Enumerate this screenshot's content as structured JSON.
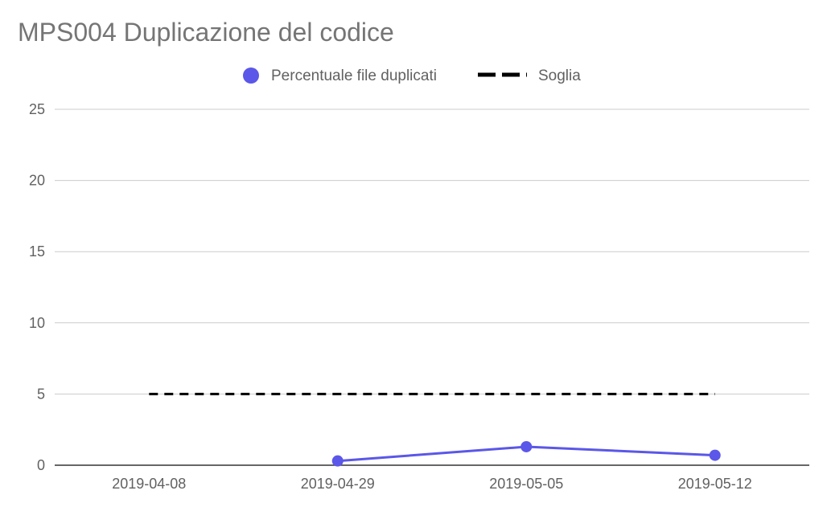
{
  "chart_data": {
    "type": "line",
    "title": "MPS004 Duplicazione del codice",
    "xlabel": "",
    "ylabel": "",
    "categories": [
      "2019-04-08",
      "2019-04-29",
      "2019-05-05",
      "2019-05-12"
    ],
    "ylim": [
      0,
      25
    ],
    "yticks": [
      0,
      5,
      10,
      15,
      20,
      25
    ],
    "grid": true,
    "legend_position": "top",
    "series": [
      {
        "name": "Percentuale file duplicati",
        "values": [
          null,
          0.3,
          1.3,
          0.7
        ],
        "color": "#5b57e8",
        "style": "solid-with-markers"
      },
      {
        "name": "Soglia",
        "values": [
          5,
          5,
          5,
          5
        ],
        "color": "#000000",
        "style": "dashed"
      }
    ]
  }
}
